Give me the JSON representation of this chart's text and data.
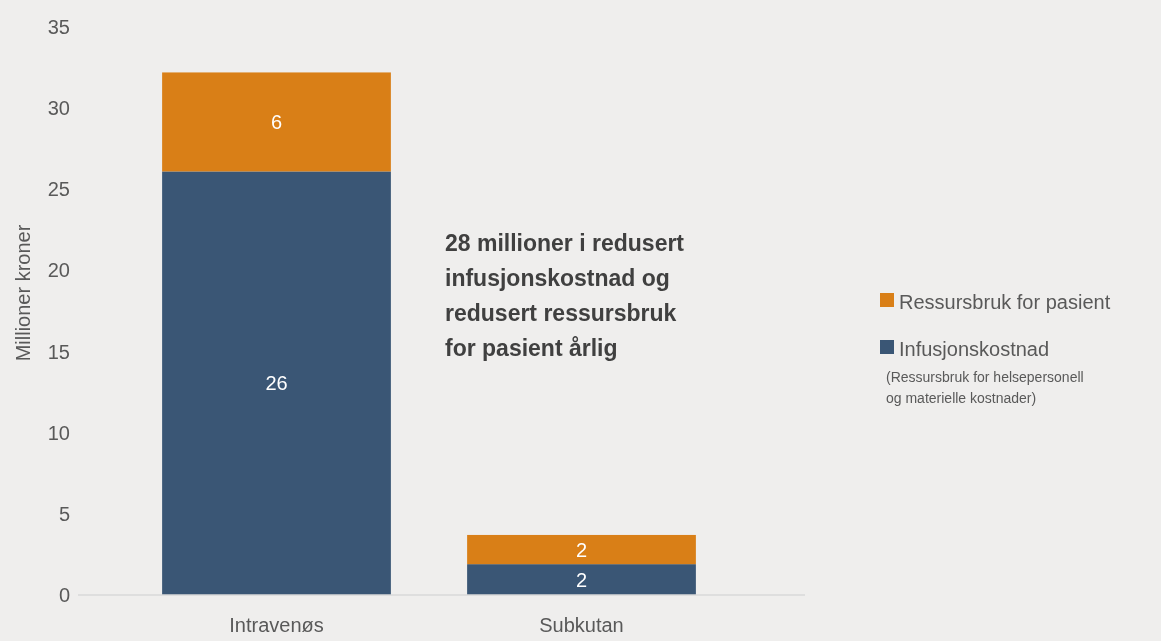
{
  "chart_data": {
    "type": "bar",
    "ylabel": "Millioner kroner",
    "categories": [
      "Intravenøs",
      "Subkutan"
    ],
    "stacked": true,
    "series": [
      {
        "name": "Infusjonskostnad",
        "color": "#3a5675",
        "values": [
          26.1,
          1.9
        ],
        "value_labels": [
          "26",
          "2"
        ]
      },
      {
        "name": "Ressursbruk for pasient",
        "color": "#d97f17",
        "values": [
          6.1,
          1.8
        ],
        "value_labels": [
          "6",
          "2"
        ]
      }
    ],
    "ylim": [
      0,
      35
    ],
    "yticks": [
      0,
      5,
      10,
      15,
      20,
      25,
      30,
      35
    ],
    "grid": false,
    "legend": "right",
    "annotations": [
      "28 millioner i redusert infusjonskostnad og redusert ressursbruk for pasient årlig",
      "(Ressursbruk for helsepersonell og materielle kostnader)"
    ]
  }
}
